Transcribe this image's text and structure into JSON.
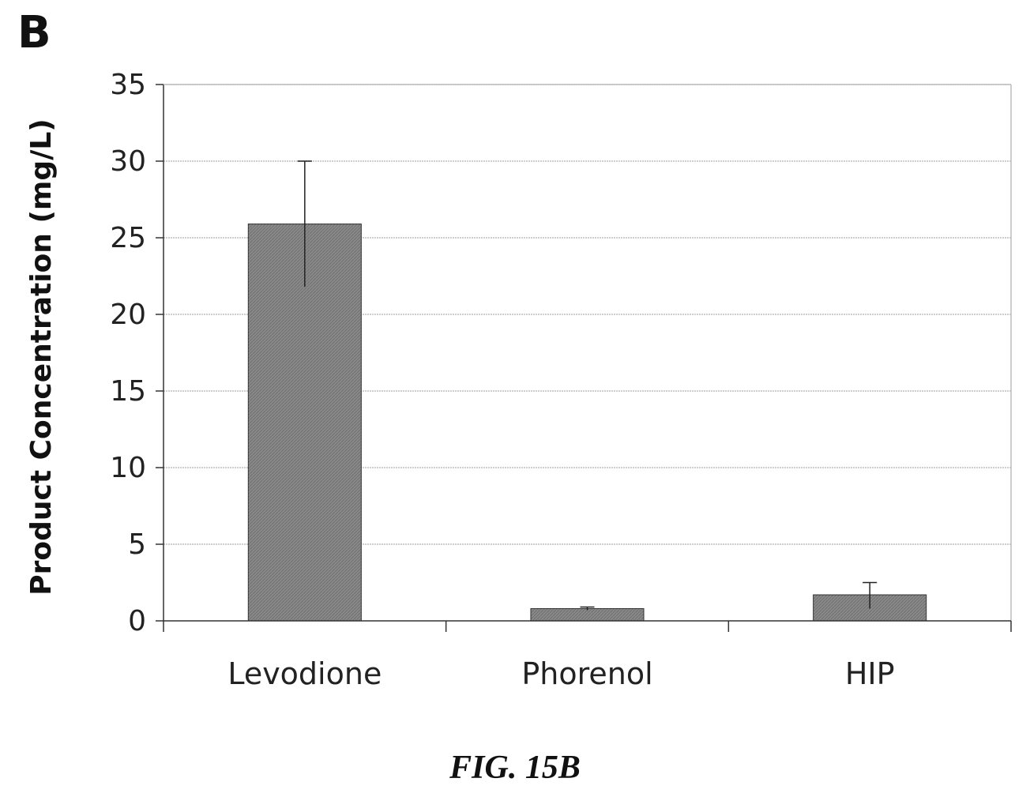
{
  "panel_label": "B",
  "caption": "FIG. 15B",
  "colors": {
    "bar": "#8a8a8a",
    "bar_stroke": "#333333",
    "grid": "#bdbdbd",
    "axis": "#333333"
  },
  "chart_data": {
    "type": "bar",
    "categories": [
      "Levodione",
      "Phorenol",
      "HIP"
    ],
    "values": [
      25.9,
      0.8,
      1.7
    ],
    "error_upper": [
      4.1,
      0.1,
      0.8
    ],
    "error_lower": [
      4.1,
      0.1,
      0.9
    ],
    "ylabel": "Product Concentration (mg/L)",
    "xlabel": "",
    "ylim": [
      0,
      35
    ],
    "yticks": [
      0,
      5,
      10,
      15,
      20,
      25,
      30,
      35
    ],
    "grid": true,
    "legend": "none"
  }
}
